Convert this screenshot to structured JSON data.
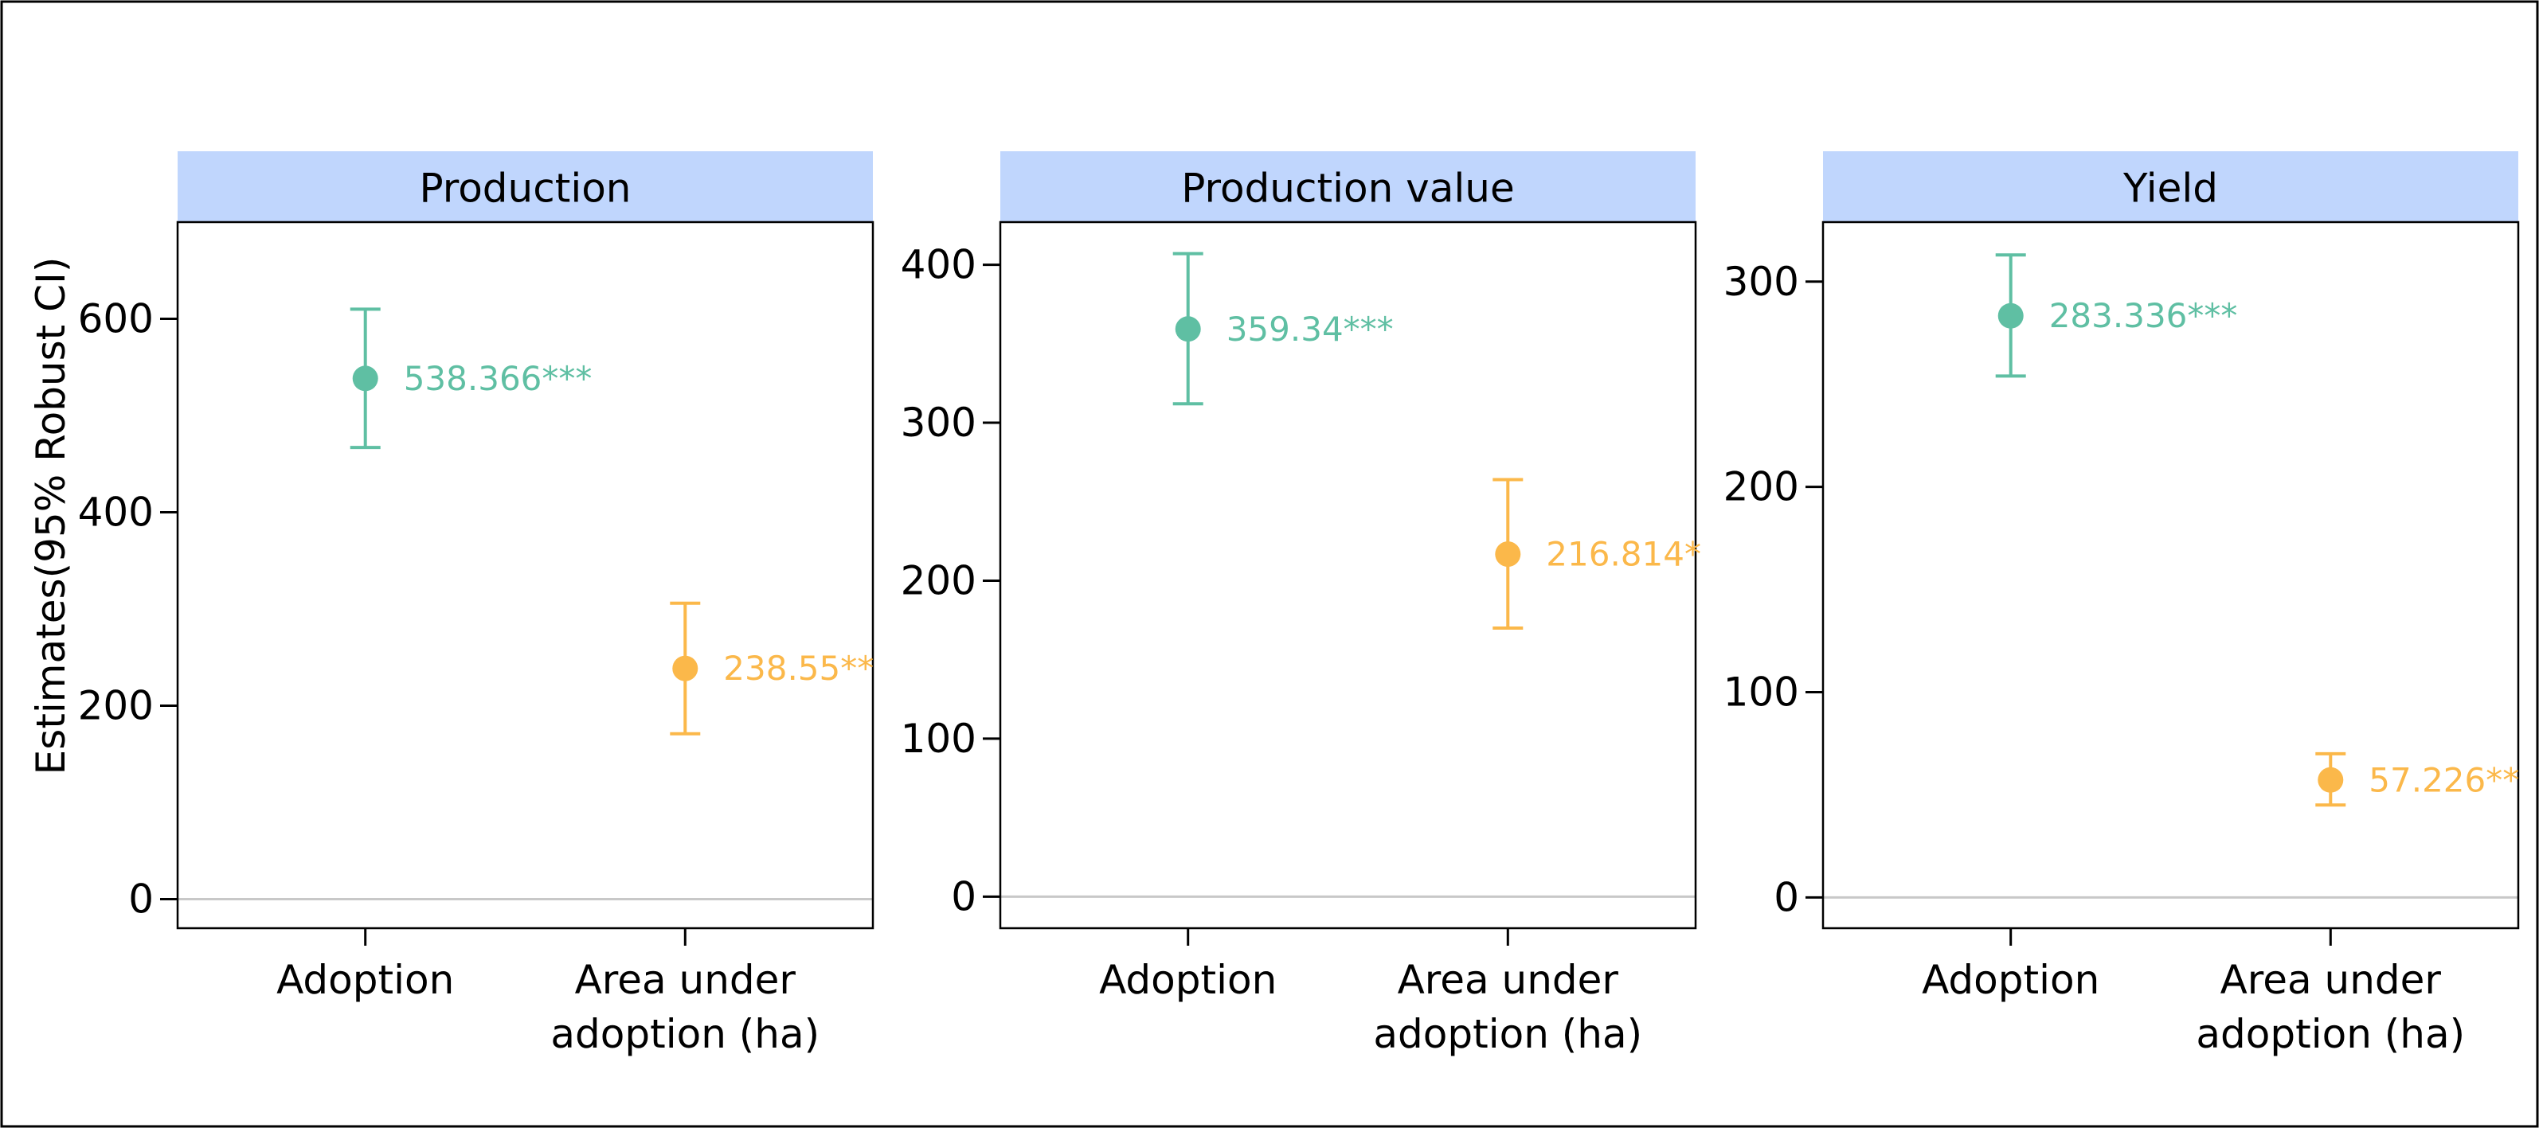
{
  "colors": {
    "series_adoption": "#5fbfa3",
    "series_area": "#fbb84a",
    "strip_background": "#c0d6fd"
  },
  "chart_data": {
    "type": "scatter",
    "subtype": "point estimates with error bars, faceted panels",
    "ylabel": "Estimates(95% Robust CI)",
    "categories": [
      "Adoption",
      "Area under adoption (ha)"
    ],
    "category_lines": [
      [
        "Adoption"
      ],
      [
        "Area under",
        "adoption (ha)"
      ]
    ],
    "panels": [
      {
        "title": "Production",
        "ylim": [
          -30,
          700
        ],
        "yticks": [
          0,
          200,
          400,
          600
        ],
        "points": [
          {
            "category": "Adoption",
            "estimate": 538.366,
            "ci_low": 467,
            "ci_high": 610,
            "label": "538.366***"
          },
          {
            "category": "Area under adoption (ha)",
            "estimate": 238.55,
            "ci_low": 171,
            "ci_high": 306,
            "label": "238.55**"
          }
        ]
      },
      {
        "title": "Production value",
        "ylim": [
          -20,
          427
        ],
        "yticks": [
          0,
          100,
          200,
          300,
          400
        ],
        "points": [
          {
            "category": "Adoption",
            "estimate": 359.34,
            "ci_low": 312,
            "ci_high": 407,
            "label": "359.34***"
          },
          {
            "category": "Area under adoption (ha)",
            "estimate": 216.814,
            "ci_low": 170,
            "ci_high": 264,
            "label": "216.814*"
          }
        ]
      },
      {
        "title": "Yield",
        "ylim": [
          -15,
          329
        ],
        "yticks": [
          0,
          100,
          200,
          300
        ],
        "points": [
          {
            "category": "Adoption",
            "estimate": 283.336,
            "ci_low": 254,
            "ci_high": 313,
            "label": "283.336***"
          },
          {
            "category": "Area under adoption (ha)",
            "estimate": 57.226,
            "ci_low": 45,
            "ci_high": 70,
            "label": "57.226**"
          }
        ]
      }
    ]
  }
}
